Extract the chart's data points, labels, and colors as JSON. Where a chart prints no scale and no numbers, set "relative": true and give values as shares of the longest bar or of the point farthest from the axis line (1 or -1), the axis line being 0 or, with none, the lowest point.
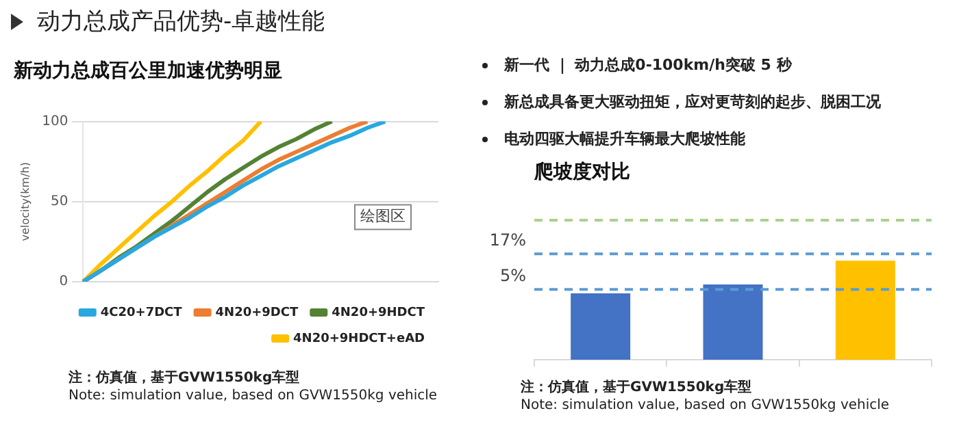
{
  "chart_data": [
    {
      "type": "other",
      "title": "动力总成产品优势-卓越性能",
      "annotations": [
        "新一代 ｜ 动力总成0-100km/h突破 5 秒",
        "新总成具备更大驱动扭矩，应对更苛刻的起步、脱困工况",
        "电动四驱大幅提升车辆最大爬坡性能"
      ]
    },
    {
      "type": "line",
      "title": "新动力总成百公里加速优势明显",
      "ylabel": "velocity(km/h)",
      "categories": [
        null,
        null,
        null,
        null,
        null,
        null,
        null,
        null,
        null,
        null,
        null,
        null,
        null,
        null,
        null,
        null,
        null,
        null,
        null,
        null,
        null
      ],
      "series": [
        {
          "name": "4C20+7DCT",
          "color": "#29a8e0",
          "values": [
            0,
            7,
            14,
            21,
            28,
            34,
            40,
            47,
            53,
            60,
            66,
            72,
            77,
            82,
            87,
            91,
            96,
            100,
            null,
            null,
            null
          ]
        },
        {
          "name": "4N20+9DCT",
          "color": "#ed7d31",
          "values": [
            0,
            7,
            14,
            21,
            28,
            35,
            42,
            49,
            56,
            63,
            70,
            76,
            81,
            86,
            91,
            96,
            100,
            null,
            null,
            null,
            null
          ]
        },
        {
          "name": "4N20+9HDCT",
          "color": "#548235",
          "values": [
            0,
            7,
            15,
            22,
            30,
            38,
            47,
            56,
            64,
            71,
            78,
            84,
            89,
            95,
            100,
            null,
            null,
            null,
            null,
            null,
            null
          ]
        },
        {
          "name": "4N20+9HDCT+eAD",
          "color": "#ffc000",
          "values": [
            0,
            11,
            21,
            31,
            41,
            50,
            60,
            69,
            79,
            88,
            100,
            null,
            null,
            null,
            null,
            null,
            null,
            null,
            null,
            null,
            null
          ]
        }
      ],
      "ylim": [
        0,
        100
      ],
      "yticks": [
        0,
        50,
        100
      ],
      "grid": "y",
      "legend": "bottom",
      "marker": "none",
      "line_style": "solid",
      "annotations": [
        "绘图区",
        "注：仿真值，基于GVW1550kg车型",
        "Note: simulation value, based on GVW1550kg vehicle"
      ]
    },
    {
      "type": "bar",
      "title": "爬坡度对比",
      "categories": [
        null,
        null,
        null
      ],
      "values": [
        0.67,
        0.76,
        1
      ],
      "colors": [
        "#4472c4",
        "#4472c4",
        "#ffc000"
      ],
      "relative": true,
      "ref_lines": [
        {
          "axis": "y",
          "value": 0.71,
          "color": "#5b9bd5",
          "line_style": "dashed"
        },
        {
          "axis": "y",
          "value": 1.07,
          "color": "#5b9bd5",
          "line_style": "dashed"
        },
        {
          "axis": "y",
          "value": 1.41,
          "color": "#a9d18e",
          "line_style": "dashed"
        }
      ],
      "annotations": [
        "5%",
        "17%",
        "注：仿真值，基于GVW1550kg车型",
        "Note: simulation value, based on GVW1550kg vehicle"
      ]
    }
  ]
}
